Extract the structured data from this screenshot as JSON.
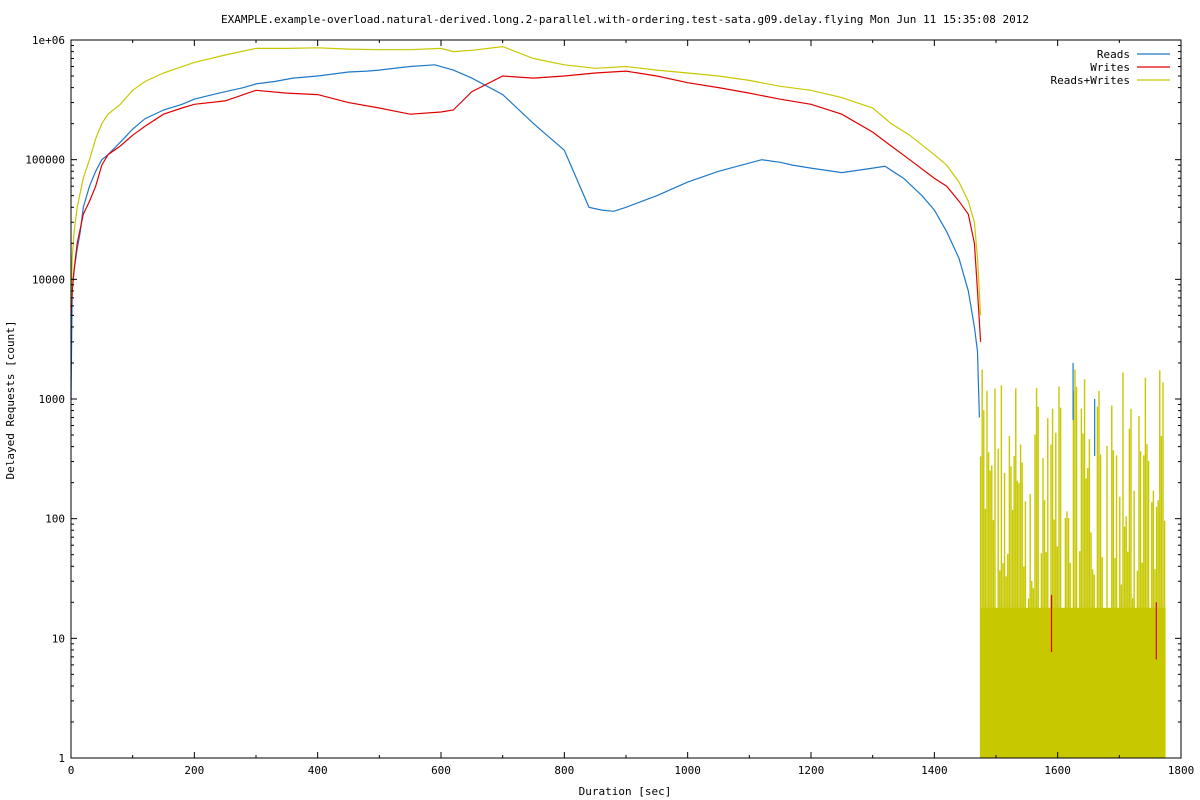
{
  "chart_data": {
    "type": "line",
    "title": "EXAMPLE.example-overload.natural-derived.long.2-parallel.with-ordering.test-sata.g09.delay.flying Mon Jun 11 15:35:08 2012",
    "xlabel": "Duration [sec]",
    "ylabel": "Delayed Requests [count]",
    "xlim": [
      0,
      1800
    ],
    "ylim": [
      1,
      1000000
    ],
    "yscale": "log",
    "x_ticks": [
      0,
      200,
      400,
      600,
      800,
      1000,
      1200,
      1400,
      1600,
      1800
    ],
    "x_tick_labels": [
      "0",
      "200",
      "400",
      "600",
      "800",
      "1000",
      "1200",
      "1400",
      "1600",
      "1800"
    ],
    "y_ticks": [
      1,
      10,
      100,
      1000,
      10000,
      100000,
      1000000
    ],
    "y_tick_labels": [
      "1",
      "10",
      "100",
      "1000",
      "10000",
      "100000",
      "1e+06"
    ],
    "grid": false,
    "legend_position": "top-right",
    "series": [
      {
        "name": "Reads",
        "color": "#1f78c8",
        "x": [
          0,
          2,
          5,
          10,
          15,
          20,
          30,
          40,
          50,
          60,
          80,
          100,
          120,
          150,
          180,
          200,
          220,
          250,
          280,
          300,
          330,
          360,
          400,
          450,
          480,
          500,
          550,
          590,
          620,
          650,
          700,
          750,
          800,
          840,
          860,
          880,
          900,
          950,
          1000,
          1050,
          1120,
          1150,
          1170,
          1200,
          1250,
          1300,
          1320,
          1350,
          1380,
          1400,
          1420,
          1440,
          1455,
          1465,
          1470,
          1473
        ],
        "values": [
          1000,
          8000,
          12000,
          18000,
          25000,
          40000,
          60000,
          80000,
          100000,
          110000,
          140000,
          180000,
          220000,
          260000,
          290000,
          320000,
          340000,
          370000,
          400000,
          430000,
          450000,
          480000,
          500000,
          540000,
          550000,
          560000,
          600000,
          620000,
          560000,
          480000,
          350000,
          200000,
          120000,
          40000,
          38000,
          37000,
          40000,
          50000,
          65000,
          80000,
          100000,
          95000,
          90000,
          85000,
          78000,
          85000,
          88000,
          70000,
          50000,
          38000,
          25000,
          15000,
          8000,
          4000,
          2500,
          700
        ]
      },
      {
        "name": "Writes",
        "color": "#e00000",
        "x": [
          0,
          2,
          5,
          10,
          20,
          30,
          40,
          50,
          60,
          80,
          100,
          120,
          150,
          180,
          200,
          250,
          300,
          350,
          400,
          450,
          500,
          550,
          600,
          620,
          650,
          700,
          750,
          800,
          850,
          900,
          950,
          1000,
          1050,
          1100,
          1150,
          1200,
          1250,
          1300,
          1330,
          1360,
          1400,
          1420,
          1440,
          1455,
          1465,
          1470,
          1475
        ],
        "values": [
          5000,
          8000,
          12000,
          20000,
          35000,
          45000,
          60000,
          90000,
          110000,
          130000,
          160000,
          190000,
          240000,
          270000,
          290000,
          310000,
          380000,
          360000,
          350000,
          300000,
          270000,
          240000,
          250000,
          260000,
          370000,
          500000,
          480000,
          500000,
          530000,
          550000,
          500000,
          440000,
          400000,
          360000,
          320000,
          290000,
          240000,
          170000,
          130000,
          100000,
          70000,
          60000,
          45000,
          35000,
          20000,
          8000,
          3000
        ]
      },
      {
        "name": "Reads+Writes",
        "color": "#c8c800",
        "x": [
          0,
          2,
          5,
          10,
          20,
          30,
          40,
          50,
          60,
          80,
          100,
          120,
          150,
          200,
          250,
          300,
          350,
          400,
          450,
          500,
          550,
          600,
          620,
          650,
          700,
          750,
          800,
          850,
          900,
          950,
          1000,
          1050,
          1100,
          1150,
          1200,
          1250,
          1300,
          1330,
          1360,
          1400,
          1420,
          1440,
          1455,
          1465,
          1470,
          1475
        ],
        "values": [
          6000,
          15000,
          25000,
          40000,
          70000,
          100000,
          150000,
          200000,
          240000,
          290000,
          380000,
          450000,
          530000,
          650000,
          750000,
          850000,
          850000,
          860000,
          840000,
          830000,
          830000,
          850000,
          800000,
          820000,
          880000,
          700000,
          620000,
          580000,
          600000,
          560000,
          530000,
          500000,
          460000,
          410000,
          380000,
          330000,
          270000,
          200000,
          160000,
          110000,
          90000,
          65000,
          45000,
          30000,
          15000,
          5000
        ]
      }
    ]
  }
}
